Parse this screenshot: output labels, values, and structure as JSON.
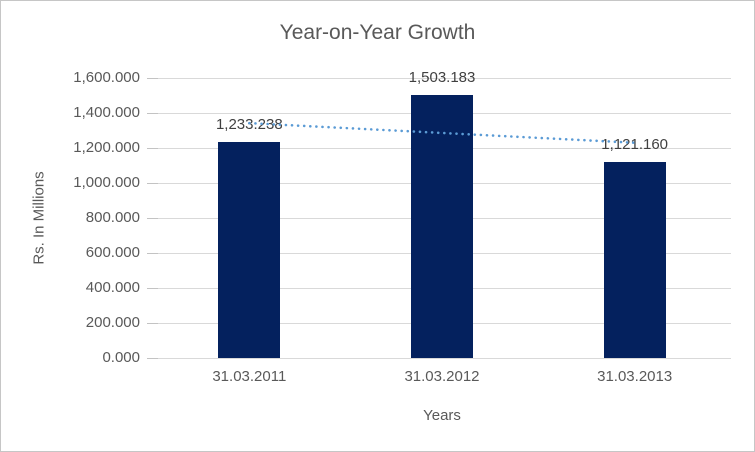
{
  "chart_data": {
    "type": "bar",
    "title": "Year-on-Year Growth",
    "xlabel": "Years",
    "ylabel": "Rs. In Millions",
    "categories": [
      "31.03.2011",
      "31.03.2012",
      "31.03.2013"
    ],
    "values": [
      1233.238,
      1503.183,
      1121.16
    ],
    "data_labels": [
      "1,233.238",
      "1,503.183",
      "1,121.160"
    ],
    "ylim": [
      0,
      1600
    ],
    "ytick_step": 200,
    "ytick_labels": [
      "0.000",
      "200.000",
      "400.000",
      "600.000",
      "800.000",
      "1,000.000",
      "1,200.000",
      "1,400.000",
      "1,600.000"
    ],
    "grid": true,
    "legend": "none",
    "trendline": {
      "type": "linear",
      "style": "dotted"
    },
    "colors": {
      "bar": "#04215E",
      "trendline": "#5B9BD5",
      "gridline": "#D9D9D9",
      "tick": "#C3C3C3",
      "axis_text": "#595959",
      "data_label_text": "#404040",
      "title_text": "#595959",
      "border": "#C6C6C6",
      "background": "#FFFFFF"
    }
  }
}
